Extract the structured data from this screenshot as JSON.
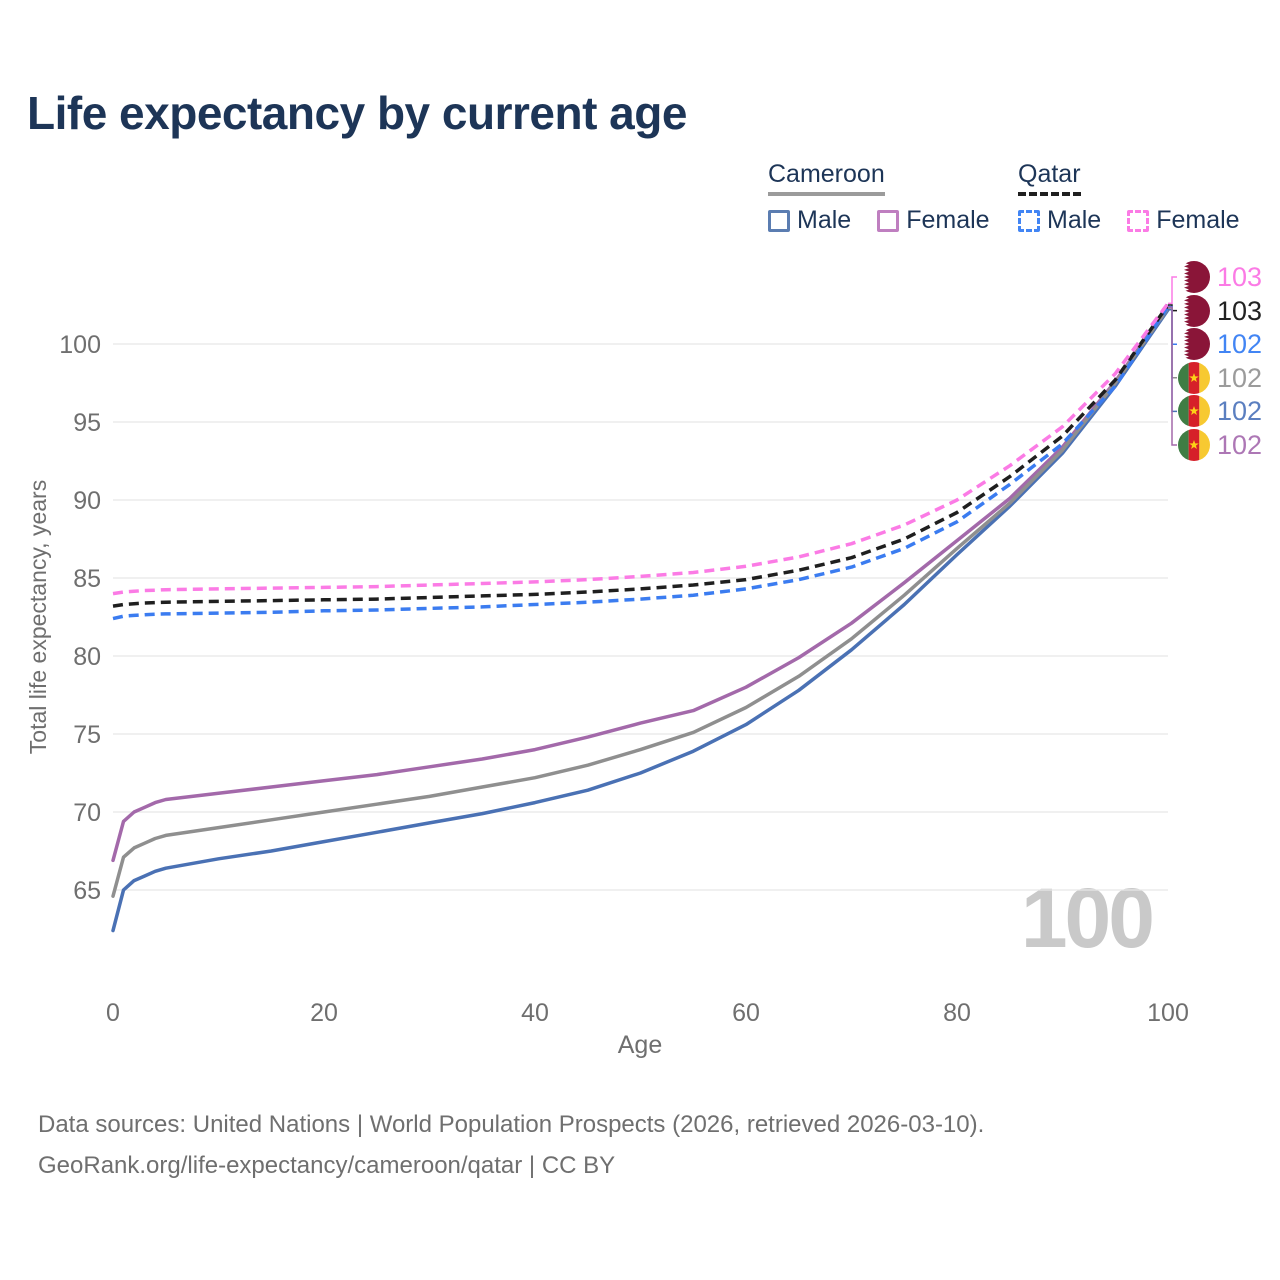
{
  "title": "Life expectancy by current age",
  "watermark": "100",
  "footer": {
    "line1": "Data sources: United Nations | World Population Prospects (2026, retrieved 2026-03-10).",
    "line2": "GeoRank.org/life-expectancy/cameroon/qatar | CC BY"
  },
  "colors": {
    "title": "#1d3557",
    "legend_text": "#1d3557",
    "axis_text": "#6f6f6f",
    "gridline": "#e8e8e8",
    "watermark": "#c9c9c9",
    "footer_text": "#6f6f6f"
  },
  "legend": {
    "groups": [
      {
        "label": "Cameroon",
        "underline_style": "solid",
        "underline_color": "#9b9b9b",
        "items": [
          {
            "label": "Male",
            "box_style": "solid",
            "box_color": "#5b7db1"
          },
          {
            "label": "Female",
            "box_style": "solid",
            "box_color": "#bf7fc0"
          }
        ]
      },
      {
        "label": "Qatar",
        "underline_style": "dashed",
        "underline_color": "#1f1f1f",
        "items": [
          {
            "label": "Male",
            "box_style": "dashed",
            "box_color": "#4285f4"
          },
          {
            "label": "Female",
            "box_style": "dashed",
            "box_color": "#fb7be5"
          }
        ]
      }
    ]
  },
  "icons": {
    "qatar_flag": {
      "name": "qatar-flag-icon",
      "maroon": "#8a1538",
      "white": "#ffffff"
    },
    "cameroon_flag": {
      "name": "cameroon-flag-icon",
      "green": "#3f7d44",
      "red": "#d62029",
      "yellow": "#f7c931",
      "star": "#fcd116"
    }
  },
  "chart_data": {
    "type": "line",
    "title": "Life expectancy by current age",
    "xlabel": "Age",
    "ylabel": "Total life expectancy, years",
    "x_ticks": [
      0,
      20,
      40,
      60,
      80,
      100
    ],
    "y_ticks": [
      65,
      70,
      75,
      80,
      85,
      90,
      95,
      100
    ],
    "xlim": [
      0,
      100
    ],
    "ylim_displayed": [
      65,
      100
    ],
    "grid": "horizontal",
    "legend_position": "top-right",
    "ages": [
      0,
      1,
      2,
      3,
      4,
      5,
      10,
      15,
      20,
      25,
      30,
      35,
      40,
      45,
      50,
      55,
      60,
      65,
      70,
      75,
      80,
      85,
      90,
      95,
      100
    ],
    "series": [
      {
        "id": "qatar-female",
        "country": "Qatar",
        "sex": "Female",
        "line_style": "dashed",
        "color": "#fb7be5",
        "flag_icon": "qatar-flag-icon",
        "end_label": "103",
        "label_color": "#fb7be5",
        "values": [
          84.0,
          84.1,
          84.15,
          84.2,
          84.22,
          84.25,
          84.3,
          84.35,
          84.4,
          84.45,
          84.55,
          84.65,
          84.75,
          84.9,
          85.1,
          85.35,
          85.75,
          86.35,
          87.2,
          88.4,
          90.0,
          92.2,
          94.7,
          98.1,
          102.6
        ]
      },
      {
        "id": "qatar-total",
        "country": "Qatar",
        "sex": "Both sexes",
        "line_style": "dashed",
        "color": "#1f1f1f",
        "flag_icon": "qatar-flag-icon",
        "end_label": "103",
        "label_color": "#222222",
        "values": [
          83.2,
          83.3,
          83.35,
          83.4,
          83.42,
          83.45,
          83.5,
          83.55,
          83.6,
          83.65,
          83.75,
          83.85,
          83.95,
          84.1,
          84.3,
          84.55,
          84.9,
          85.5,
          86.3,
          87.5,
          89.2,
          91.5,
          94.1,
          97.7,
          102.5
        ]
      },
      {
        "id": "qatar-male",
        "country": "Qatar",
        "sex": "Male",
        "line_style": "dashed",
        "color": "#3b7cf0",
        "flag_icon": "qatar-flag-icon",
        "end_label": "102",
        "label_color": "#4285f4",
        "values": [
          82.4,
          82.55,
          82.6,
          82.65,
          82.68,
          82.7,
          82.75,
          82.8,
          82.9,
          82.95,
          83.05,
          83.15,
          83.3,
          83.45,
          83.65,
          83.9,
          84.3,
          84.9,
          85.7,
          86.9,
          88.6,
          91.0,
          93.6,
          97.3,
          102.4
        ]
      },
      {
        "id": "cameroon-total",
        "country": "Cameroon",
        "sex": "Both sexes",
        "line_style": "solid",
        "color": "#8f8f8f",
        "flag_icon": "cameroon-flag-icon",
        "end_label": "102",
        "label_color": "#9b9b9b",
        "values": [
          64.6,
          67.1,
          67.7,
          68.0,
          68.3,
          68.5,
          69.0,
          69.5,
          70.0,
          70.5,
          71.0,
          71.6,
          72.2,
          73.0,
          74.0,
          75.1,
          76.7,
          78.7,
          81.1,
          83.9,
          86.9,
          89.8,
          93.2,
          97.5,
          102.3
        ]
      },
      {
        "id": "cameroon-male",
        "country": "Cameroon",
        "sex": "Male",
        "line_style": "solid",
        "color": "#4a71b4",
        "flag_icon": "cameroon-flag-icon",
        "end_label": "102",
        "label_color": "#5b7fc0",
        "values": [
          62.4,
          65.0,
          65.6,
          65.9,
          66.2,
          66.4,
          67.0,
          67.5,
          68.1,
          68.7,
          69.3,
          69.9,
          70.6,
          71.4,
          72.5,
          73.9,
          75.6,
          77.8,
          80.4,
          83.3,
          86.5,
          89.6,
          93.0,
          97.3,
          102.2
        ]
      },
      {
        "id": "cameroon-female",
        "country": "Cameroon",
        "sex": "Female",
        "line_style": "solid",
        "color": "#a369aa",
        "flag_icon": "cameroon-flag-icon",
        "end_label": "102",
        "label_color": "#ad77b5",
        "values": [
          66.9,
          69.4,
          70.0,
          70.3,
          70.6,
          70.8,
          71.2,
          71.6,
          72.0,
          72.4,
          72.9,
          73.4,
          74.0,
          74.8,
          75.7,
          76.5,
          78.0,
          79.9,
          82.1,
          84.7,
          87.4,
          90.1,
          93.4,
          97.6,
          102.35
        ]
      }
    ]
  }
}
